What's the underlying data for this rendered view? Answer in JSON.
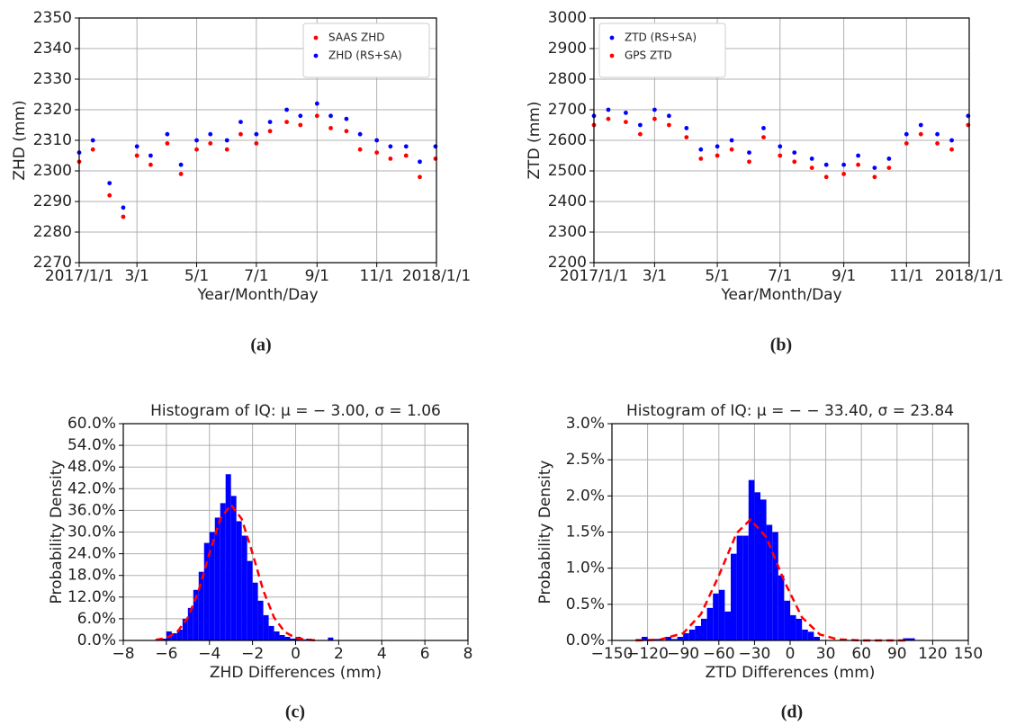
{
  "chart_data": [
    {
      "type": "scatter",
      "panel": "(a)",
      "xlabel": "Year/Month/Day",
      "ylabel": "ZHD (mm)",
      "grid": true,
      "legend": "upper right",
      "x": [
        "2017/1/1",
        "2017/1/15",
        "2017/2/1",
        "2017/2/15",
        "2017/3/1",
        "2017/3/15",
        "2017/4/1",
        "2017/4/15",
        "2017/5/1",
        "2017/5/15",
        "2017/6/1",
        "2017/6/15",
        "2017/7/1",
        "2017/7/15",
        "2017/8/1",
        "2017/8/15",
        "2017/9/1",
        "2017/9/15",
        "2017/10/1",
        "2017/10/15",
        "2017/11/1",
        "2017/11/15",
        "2017/12/1",
        "2017/12/15",
        "2017/12/31"
      ],
      "series": [
        {
          "name": "SAAS ZHD",
          "color": "#ff0000",
          "values": [
            2303,
            2307,
            2292,
            2285,
            2305,
            2302,
            2309,
            2299,
            2307,
            2309,
            2307,
            2312,
            2309,
            2313,
            2316,
            2315,
            2318,
            2314,
            2313,
            2307,
            2306,
            2304,
            2305,
            2298,
            2304
          ]
        },
        {
          "name": "ZHD (RS+SA)",
          "color": "#0000ff",
          "values": [
            2306,
            2310,
            2296,
            2288,
            2308,
            2305,
            2312,
            2302,
            2310,
            2312,
            2310,
            2316,
            2312,
            2316,
            2320,
            2318,
            2322,
            2318,
            2317,
            2312,
            2310,
            2308,
            2308,
            2303,
            2308
          ]
        }
      ],
      "xlim": [
        "2017/1/1",
        "2018/1/1"
      ],
      "xticks": [
        "2017/1/1",
        {
          "value": "2017/3/1",
          "label": "3/1"
        },
        {
          "value": "2017/5/1",
          "label": "5/1"
        },
        {
          "value": "2017/7/1",
          "label": "7/1"
        },
        {
          "value": "2017/9/1",
          "label": "9/1"
        },
        {
          "value": "2017/11/1",
          "label": "11/1"
        },
        "2018/1/1"
      ],
      "ylim": [
        2270,
        2350
      ],
      "yticks": [
        2270,
        2280,
        2290,
        2300,
        2310,
        2320,
        2330,
        2340,
        2350
      ]
    },
    {
      "type": "scatter",
      "panel": "(b)",
      "xlabel": "Year/Month/Day",
      "ylabel": "ZTD (mm)",
      "grid": true,
      "legend": "upper left",
      "x": [
        "2017/1/1",
        "2017/1/15",
        "2017/2/1",
        "2017/2/15",
        "2017/3/1",
        "2017/3/15",
        "2017/4/1",
        "2017/4/15",
        "2017/5/1",
        "2017/5/15",
        "2017/6/1",
        "2017/6/15",
        "2017/7/1",
        "2017/7/15",
        "2017/8/1",
        "2017/8/15",
        "2017/9/1",
        "2017/9/15",
        "2017/10/1",
        "2017/10/15",
        "2017/11/1",
        "2017/11/15",
        "2017/12/1",
        "2017/12/15",
        "2017/12/31"
      ],
      "series": [
        {
          "name": "ZTD (RS+SA)",
          "color": "#0000ff",
          "values": [
            2680,
            2700,
            2690,
            2650,
            2700,
            2680,
            2640,
            2570,
            2580,
            2600,
            2560,
            2640,
            2580,
            2560,
            2540,
            2520,
            2520,
            2550,
            2510,
            2540,
            2620,
            2650,
            2620,
            2600,
            2680
          ]
        },
        {
          "name": "GPS ZTD",
          "color": "#ff0000",
          "values": [
            2650,
            2670,
            2660,
            2620,
            2670,
            2650,
            2610,
            2540,
            2550,
            2570,
            2530,
            2610,
            2550,
            2530,
            2510,
            2480,
            2490,
            2520,
            2480,
            2510,
            2590,
            2620,
            2590,
            2570,
            2650
          ]
        }
      ],
      "xlim": [
        "2017/1/1",
        "2018/1/1"
      ],
      "xticks": [
        "2017/1/1",
        {
          "value": "2017/3/1",
          "label": "3/1"
        },
        {
          "value": "2017/5/1",
          "label": "5/1"
        },
        {
          "value": "2017/7/1",
          "label": "7/1"
        },
        {
          "value": "2017/9/1",
          "label": "9/1"
        },
        {
          "value": "2017/11/1",
          "label": "11/1"
        },
        "2018/1/1"
      ],
      "ylim": [
        2200,
        3000
      ],
      "yticks": [
        2200,
        2300,
        2400,
        2500,
        2600,
        2700,
        2800,
        2900,
        3000
      ]
    },
    {
      "type": "histogram",
      "panel": "(c)",
      "title": "Histogram of IQ: μ = − 3.00, σ = 1.06",
      "xlabel": "ZHD Differences (mm)",
      "ylabel": "Probability Density",
      "grid": true,
      "color": "#0000ff",
      "bins": [
        -6.25,
        -6,
        -5.75,
        -5.5,
        -5.25,
        -5,
        -4.75,
        -4.5,
        -4.25,
        -4,
        -3.75,
        -3.5,
        -3.25,
        -3,
        -2.75,
        -2.5,
        -2.25,
        -2,
        -1.75,
        -1.5,
        -1.25,
        -1,
        -0.75,
        -0.5,
        -0.25,
        0,
        0.25,
        0.5,
        0.75,
        1,
        1.25,
        1.5,
        1.75
      ],
      "values": [
        0.5,
        2.5,
        2,
        3,
        6,
        9,
        14,
        19,
        27,
        30,
        34,
        38,
        46,
        40,
        33,
        29,
        22,
        16,
        11,
        7,
        4,
        2.5,
        1.5,
        1,
        0.5,
        1,
        0.3,
        0.5,
        0,
        0,
        0,
        0.8
      ],
      "curve": {
        "color": "#ff0000",
        "x": [
          -6.5,
          -6,
          -5.5,
          -5,
          -4.5,
          -4,
          -3.5,
          -3,
          -2.5,
          -2,
          -1.5,
          -1,
          -0.5,
          0,
          0.5,
          1
        ],
        "values": [
          0.16,
          0.69,
          2.33,
          6.34,
          13.8,
          24.1,
          33.6,
          37.6,
          33.6,
          24.1,
          13.8,
          6.34,
          2.33,
          0.69,
          0.16,
          0.03
        ]
      },
      "xlim": [
        -8,
        8
      ],
      "xticks": [
        {
          "value": -8,
          "label": "−8"
        },
        {
          "value": -6,
          "label": "−6"
        },
        {
          "value": -4,
          "label": "−4"
        },
        {
          "value": -2,
          "label": "−2"
        },
        0,
        2,
        4,
        6,
        8
      ],
      "ylim": [
        0,
        60
      ],
      "yticks": [
        {
          "value": 0,
          "label": "0.0%"
        },
        {
          "value": 6,
          "label": "6.0%"
        },
        {
          "value": 12,
          "label": "12.0%"
        },
        {
          "value": 18,
          "label": "18.0%"
        },
        {
          "value": 24,
          "label": "24.0%"
        },
        {
          "value": 30,
          "label": "30.0%"
        },
        {
          "value": 36,
          "label": "36.0%"
        },
        {
          "value": 42,
          "label": "42.0%"
        },
        {
          "value": 48,
          "label": "48.0%"
        },
        {
          "value": 54,
          "label": "54.0%"
        },
        {
          "value": 60,
          "label": "60.0%"
        }
      ]
    },
    {
      "type": "histogram",
      "panel": "(d)",
      "title": "Histogram of IQ: μ = − − 33.40, σ = 23.84",
      "xlabel": "ZTD Differences (mm)",
      "ylabel": "Probability Density",
      "grid": true,
      "color": "#0000ff",
      "bins": [
        -130,
        -125,
        -120,
        -115,
        -110,
        -105,
        -100,
        -95,
        -90,
        -85,
        -80,
        -75,
        -70,
        -65,
        -60,
        -55,
        -50,
        -45,
        -40,
        -35,
        -30,
        -25,
        -20,
        -15,
        -10,
        -5,
        0,
        5,
        10,
        15,
        20,
        25,
        30,
        35,
        40,
        45,
        50,
        55,
        60,
        65,
        70,
        75,
        80,
        85,
        90,
        95,
        100,
        105
      ],
      "values": [
        0.02,
        0.05,
        0.02,
        0.02,
        0,
        0.05,
        0.02,
        0.05,
        0.1,
        0.15,
        0.2,
        0.3,
        0.45,
        0.65,
        0.7,
        0.4,
        1.2,
        1.45,
        1.45,
        2.22,
        2.05,
        1.95,
        1.6,
        1.5,
        0.9,
        0.55,
        0.35,
        0.3,
        0.15,
        0.12,
        0.05,
        0,
        0,
        0,
        0,
        0,
        0,
        0,
        0,
        0,
        0,
        0,
        0,
        0,
        0,
        0.03,
        0.03
      ],
      "curve": {
        "color": "#ff0000",
        "x": [
          -130,
          -110,
          -90,
          -75,
          -60,
          -45,
          -33.4,
          -20,
          -5,
          10,
          25,
          40,
          60,
          80,
          100
        ],
        "values": [
          0.0005,
          0.01,
          0.1,
          0.365,
          0.897,
          1.486,
          1.673,
          1.428,
          0.823,
          0.319,
          0.083,
          0.015,
          0.0005,
          0,
          0
        ]
      },
      "xlim": [
        -150,
        150
      ],
      "xticks": [
        {
          "value": -150,
          "label": "−150"
        },
        {
          "value": -120,
          "label": "−120"
        },
        {
          "value": -90,
          "label": "−90"
        },
        {
          "value": -60,
          "label": "−60"
        },
        {
          "value": -30,
          "label": "−30"
        },
        0,
        30,
        60,
        90,
        120,
        150
      ],
      "ylim": [
        0,
        3
      ],
      "yticks": [
        {
          "value": 0,
          "label": "0.0%"
        },
        {
          "value": 0.5,
          "label": "0.5%"
        },
        {
          "value": 1,
          "label": "1.0%"
        },
        {
          "value": 1.5,
          "label": "1.5%"
        },
        {
          "value": 2,
          "label": "2.0%"
        },
        {
          "value": 2.5,
          "label": "2.5%"
        },
        {
          "value": 3,
          "label": "3.0%"
        }
      ]
    }
  ]
}
